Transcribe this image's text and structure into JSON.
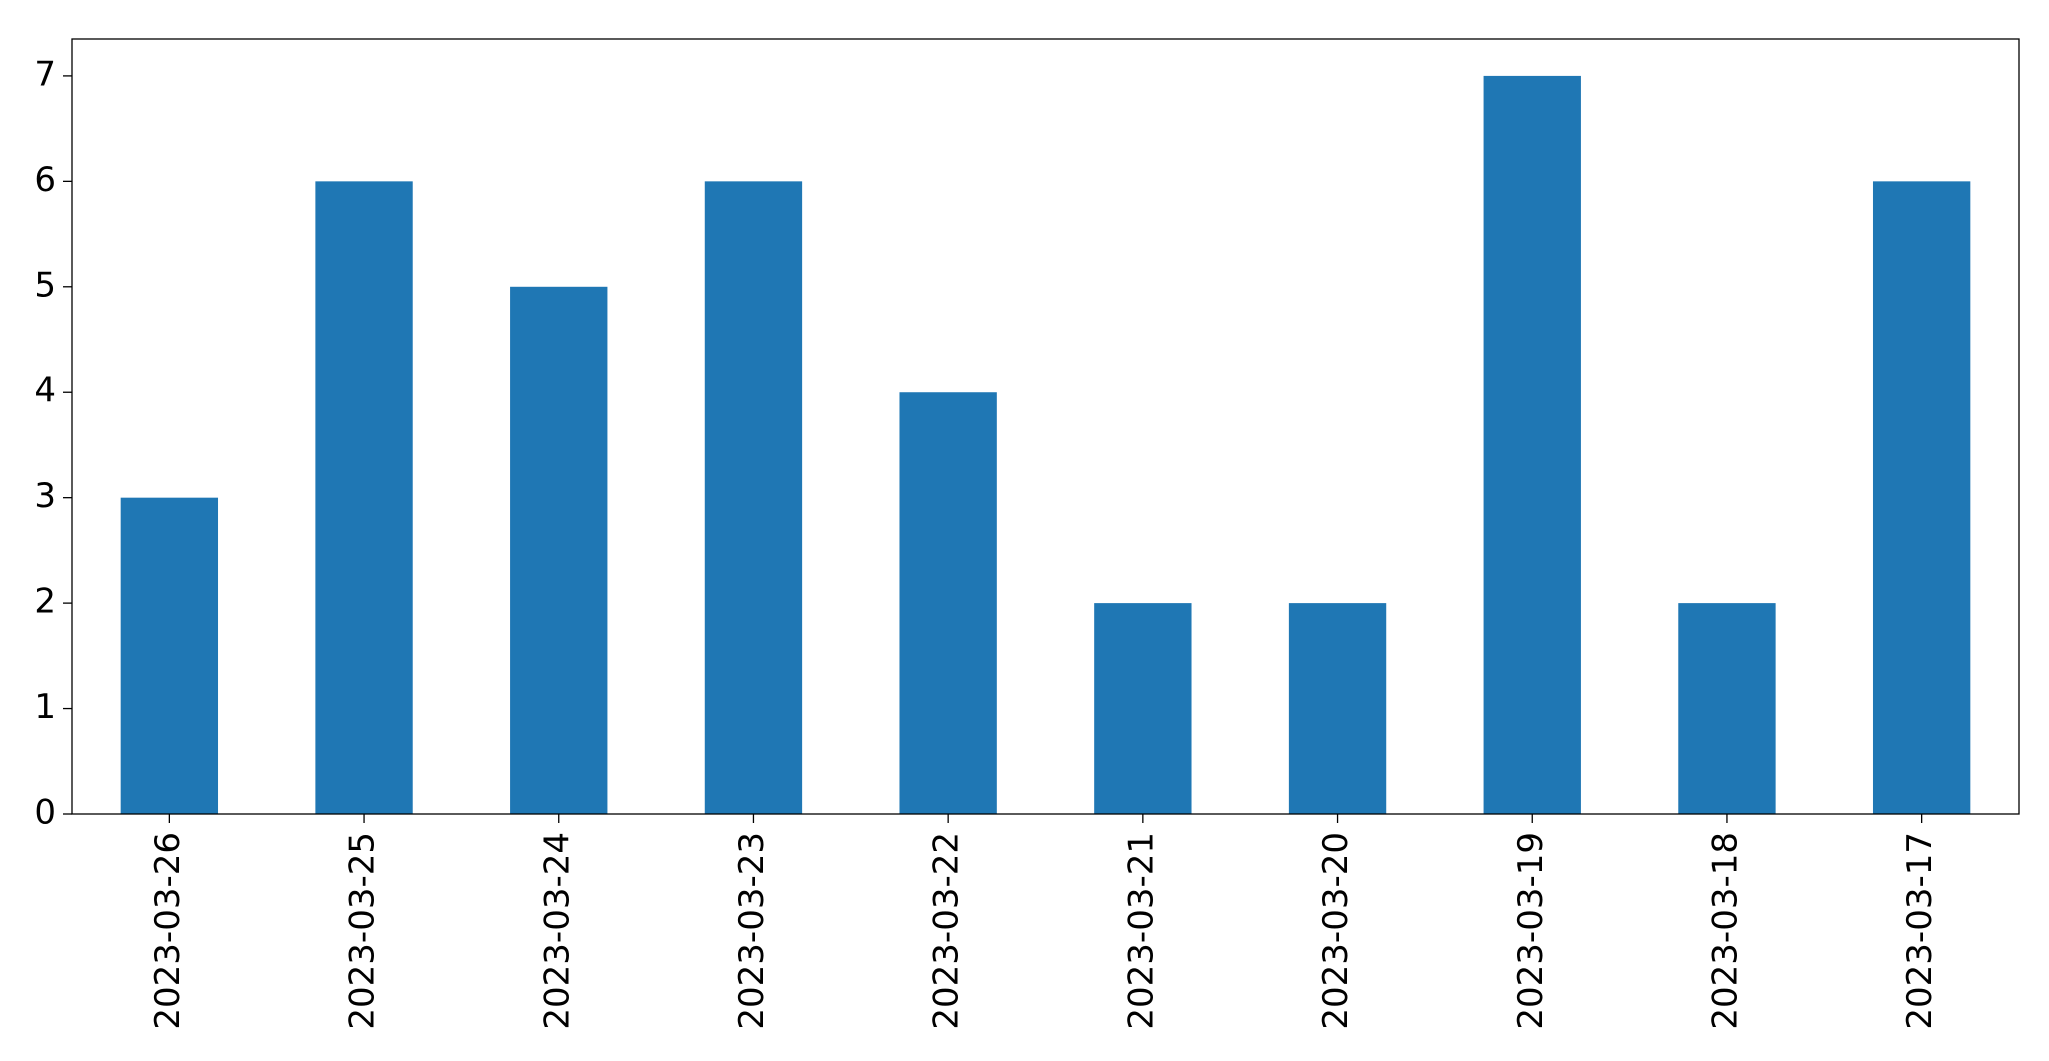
{
  "chart_data": {
    "type": "bar",
    "categories": [
      "2023-03-26",
      "2023-03-25",
      "2023-03-24",
      "2023-03-23",
      "2023-03-22",
      "2023-03-21",
      "2023-03-20",
      "2023-03-19",
      "2023-03-18",
      "2023-03-17"
    ],
    "values": [
      3,
      6,
      5,
      6,
      4,
      2,
      2,
      7,
      2,
      6
    ],
    "color": "#1f77b4",
    "ylim": [
      0,
      7.35
    ],
    "yticks": [
      0,
      1,
      2,
      3,
      4,
      5,
      6,
      7
    ],
    "grid": false
  }
}
